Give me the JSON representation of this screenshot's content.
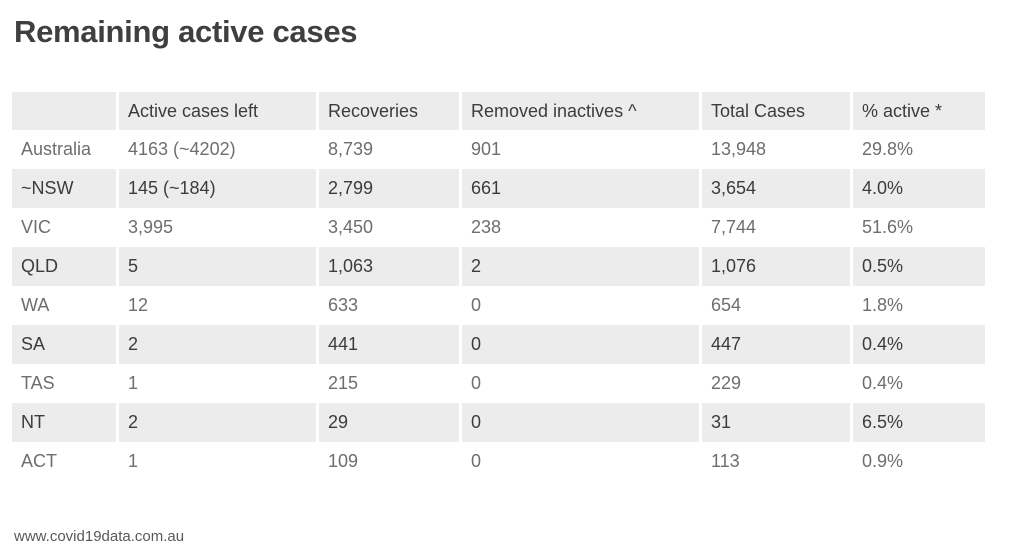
{
  "title": "Remaining active cases",
  "source": "www.covid19data.com.au",
  "colors": {
    "stripe_background": "#ececec",
    "header_text": "#3c3c3c",
    "shaded_row_text": "#3c3c3c",
    "plain_row_text": "#6e6e6e",
    "title_text": "#3f3f3f",
    "footer_text": "#595959",
    "page_background": "#ffffff"
  },
  "chart_data": {
    "type": "table",
    "title": "Remaining active cases",
    "columns": [
      "",
      "Active cases left",
      "Recoveries",
      "Removed inactives ^",
      "Total Cases",
      "% active *"
    ],
    "rows": [
      [
        "Australia",
        "4163 (~4202)",
        "8,739",
        "901",
        "13,948",
        "29.8%"
      ],
      [
        "~NSW",
        "145 (~184)",
        "2,799",
        "661",
        "3,654",
        "4.0%"
      ],
      [
        "VIC",
        "3,995",
        "3,450",
        "238",
        "7,744",
        "51.6%"
      ],
      [
        "QLD",
        "5",
        "1,063",
        "2",
        "1,076",
        "0.5%"
      ],
      [
        "WA",
        "12",
        "633",
        "0",
        "654",
        "1.8%"
      ],
      [
        "SA",
        "2",
        "441",
        "0",
        "447",
        "0.4%"
      ],
      [
        "TAS",
        "1",
        "215",
        "0",
        "229",
        "0.4%"
      ],
      [
        "NT",
        "2",
        "29",
        "0",
        "31",
        "6.5%"
      ],
      [
        "ACT",
        "1",
        "109",
        "0",
        "113",
        "0.9%"
      ]
    ],
    "layout": {
      "striped_rows": true,
      "shaded_row_indices": [
        1,
        3,
        5,
        7
      ],
      "column_alignment": "left",
      "grid": "none",
      "footer_caption": "www.covid19data.com.au"
    }
  }
}
